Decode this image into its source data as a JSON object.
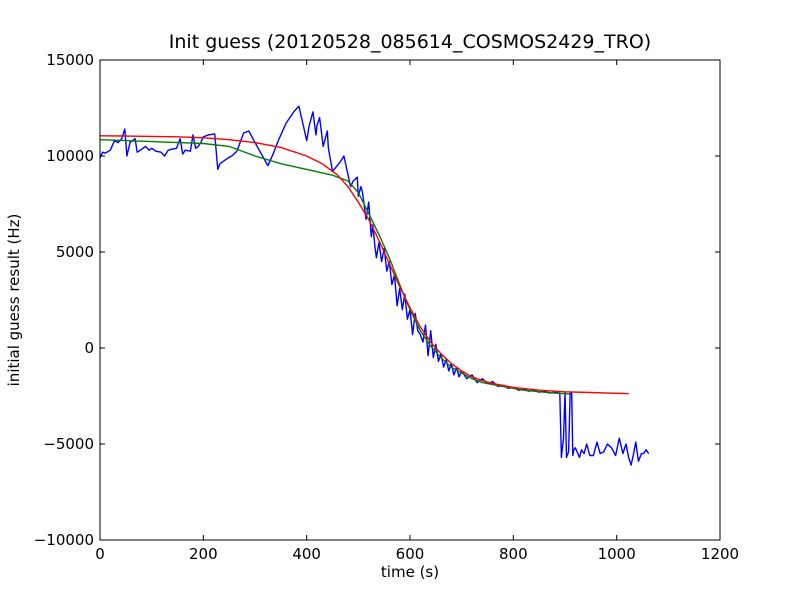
{
  "chart_data": {
    "type": "line",
    "title": "Init guess (20120528_085614_COSMOS2429_TRO)",
    "xlabel": "time (s)",
    "ylabel": "initial guess result (Hz)",
    "xlim": [
      0,
      1200
    ],
    "ylim": [
      -10000,
      15000
    ],
    "x_ticks": [
      0,
      200,
      400,
      600,
      800,
      1000,
      1200
    ],
    "y_ticks": [
      -10000,
      -5000,
      0,
      5000,
      10000,
      15000
    ],
    "x_tick_labels": [
      "0",
      "200",
      "400",
      "600",
      "800",
      "1000",
      "1200"
    ],
    "y_tick_labels": [
      "−10000",
      "−5000",
      "0",
      "5000",
      "10000",
      "15000"
    ],
    "grid": false,
    "legend": "none",
    "series": [
      {
        "color": "#0000ff",
        "x": [
          0,
          5,
          10,
          20,
          28,
          35,
          42,
          48,
          52,
          58,
          68,
          72,
          78,
          88,
          95,
          100,
          108,
          118,
          125,
          132,
          138,
          148,
          155,
          160,
          165,
          175,
          180,
          185,
          190,
          195,
          200,
          210,
          222,
          228,
          232,
          248,
          255,
          265,
          278,
          288,
          300,
          325,
          335,
          345,
          360,
          375,
          385,
          400,
          405,
          412,
          418,
          420,
          425,
          432,
          440,
          442,
          450,
          465,
          472,
          485,
          490,
          498,
          500,
          505,
          508,
          515,
          520,
          525,
          528,
          532,
          535,
          540,
          545,
          550,
          555,
          560,
          565,
          570,
          575,
          580,
          585,
          590,
          595,
          600,
          605,
          610,
          615,
          620,
          625,
          630,
          635,
          640,
          645,
          650,
          655,
          660,
          665,
          670,
          675,
          680,
          685,
          690,
          695,
          700,
          710,
          720,
          730,
          740,
          750,
          760,
          770,
          780,
          790,
          800,
          810,
          820,
          830,
          840,
          850,
          860,
          870,
          880,
          890,
          893,
          897,
          900,
          903,
          907,
          910,
          913,
          915,
          917,
          920,
          925,
          928,
          932,
          937,
          942,
          948,
          955,
          962,
          968,
          975,
          982,
          990,
          998,
          1005,
          1012,
          1018,
          1023,
          1028,
          1032,
          1037,
          1042,
          1048,
          1052,
          1057,
          1062
        ],
        "y": [
          9900,
          10200,
          10150,
          10300,
          10800,
          10700,
          10900,
          11400,
          10000,
          10700,
          10900,
          10200,
          10300,
          10500,
          10300,
          10400,
          10250,
          10200,
          10000,
          10300,
          10350,
          10400,
          10900,
          10100,
          10300,
          10250,
          11100,
          10400,
          10500,
          10700,
          11000,
          11100,
          11150,
          9300,
          9600,
          9900,
          10000,
          10250,
          11200,
          11300,
          10700,
          9500,
          10100,
          10800,
          11700,
          12300,
          12600,
          10800,
          11600,
          12300,
          11100,
          11600,
          12000,
          10500,
          11300,
          10400,
          9200,
          9700,
          10000,
          8400,
          8700,
          8900,
          7900,
          8400,
          8100,
          6700,
          7600,
          5800,
          6400,
          5300,
          4700,
          5500,
          4500,
          5200,
          4000,
          4500,
          3300,
          3800,
          2200,
          3100,
          2000,
          2800,
          1500,
          2000,
          700,
          1800,
          900,
          700,
          300,
          1200,
          -400,
          900,
          -500,
          200,
          -700,
          -300,
          -1000,
          -600,
          -1200,
          -800,
          -1400,
          -1000,
          -1500,
          -1200,
          -1600,
          -1400,
          -1800,
          -1600,
          -1850,
          -1750,
          -2000,
          -1950,
          -2100,
          -2050,
          -2200,
          -2150,
          -2250,
          -2200,
          -2300,
          -2250,
          -2350,
          -2300,
          -2350,
          -5700,
          -4700,
          -2300,
          -5700,
          -5400,
          -2300,
          -2350,
          -5600,
          -5300,
          -5200,
          -5500,
          -5700,
          -5300,
          -5500,
          -5000,
          -5600,
          -5600,
          -4900,
          -5500,
          -5400,
          -5000,
          -5200,
          -5600,
          -4700,
          -5500,
          -5000,
          -5700,
          -6100,
          -5600,
          -4900,
          -5900,
          -5500,
          -5500,
          -5300,
          -5500
        ]
      },
      {
        "color": "#008000",
        "x": [
          0,
          50,
          100,
          150,
          200,
          250,
          300,
          350,
          400,
          450,
          480,
          500,
          520,
          540,
          560,
          580,
          600,
          620,
          640,
          660,
          680,
          700,
          720,
          740,
          760,
          780,
          800,
          820,
          840,
          860,
          880,
          900,
          910
        ],
        "y": [
          10850,
          10800,
          10750,
          10700,
          10650,
          10500,
          10000,
          9600,
          9300,
          9000,
          8700,
          8100,
          7000,
          5900,
          4700,
          3300,
          2000,
          900,
          100,
          -500,
          -1000,
          -1300,
          -1600,
          -1800,
          -1900,
          -2000,
          -2100,
          -2200,
          -2250,
          -2300,
          -2350,
          -2380,
          -2400
        ]
      },
      {
        "color": "#ff0000",
        "x": [
          0,
          50,
          100,
          150,
          200,
          250,
          300,
          350,
          400,
          430,
          460,
          480,
          500,
          520,
          540,
          560,
          580,
          600,
          620,
          640,
          660,
          680,
          700,
          720,
          740,
          760,
          780,
          800,
          850,
          900,
          950,
          1000,
          1023
        ],
        "y": [
          11050,
          11040,
          11020,
          11000,
          10950,
          10850,
          10700,
          10450,
          10000,
          9600,
          9000,
          8400,
          7600,
          6700,
          5600,
          4400,
          3200,
          2100,
          1100,
          300,
          -300,
          -800,
          -1200,
          -1500,
          -1700,
          -1850,
          -1950,
          -2050,
          -2200,
          -2280,
          -2320,
          -2360,
          -2380
        ]
      }
    ]
  }
}
